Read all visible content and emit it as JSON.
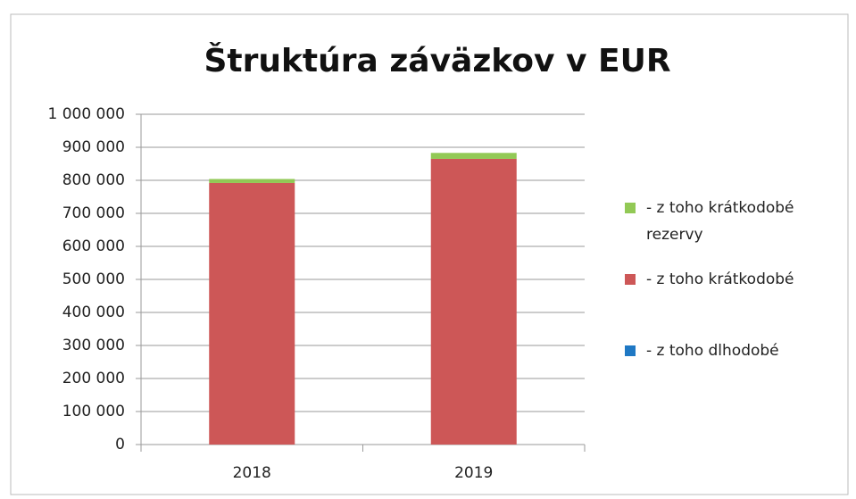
{
  "chart_data": {
    "type": "stacked_bar",
    "title": "Štruktúra záväzkov v EUR",
    "categories": [
      "2018",
      "2019"
    ],
    "series": [
      {
        "name": "- z toho dlhodobé",
        "color": "#1f78c4",
        "values": [
          0,
          0
        ]
      },
      {
        "name": "- z toho krátkodobé",
        "color": "#cd5757",
        "values": [
          792000,
          865000
        ]
      },
      {
        "name": "- z toho krátkodobé rezervy",
        "color": "#92c955",
        "values": [
          12000,
          18000
        ]
      }
    ],
    "ylim": [
      0,
      1000000
    ],
    "yticks": [
      0,
      {
        "value": 100000,
        "label": "100 000"
      },
      {
        "value": 200000,
        "label": "200 000"
      },
      {
        "value": 300000,
        "label": "300 000"
      },
      {
        "value": 400000,
        "label": "400 000"
      },
      {
        "value": 500000,
        "label": "500 000"
      },
      {
        "value": 600000,
        "label": "600 000"
      },
      {
        "value": 700000,
        "label": "700 000"
      },
      {
        "value": 800000,
        "label": "800 000"
      },
      {
        "value": 900000,
        "label": "900 000"
      },
      {
        "value": 1000000,
        "label": "1 000 000"
      }
    ],
    "grid": true,
    "legend": "right"
  }
}
